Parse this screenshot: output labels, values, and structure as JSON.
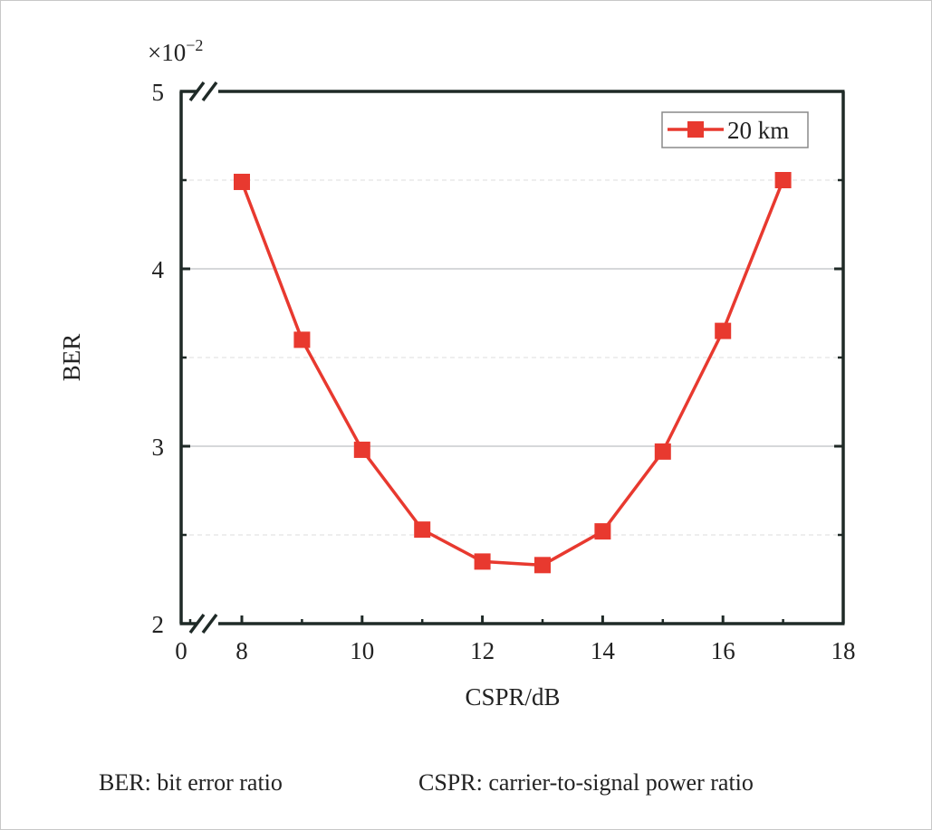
{
  "chart_data": {
    "type": "line",
    "title": "",
    "xlabel": "CSPR/dB",
    "ylabel": "BER",
    "y_multiplier": "×10",
    "y_multiplier_exp": "−2",
    "xlim": [
      0,
      18
    ],
    "ylim": [
      2,
      5
    ],
    "x_axis_break": [
      0,
      8
    ],
    "y_axis_break": [
      0,
      2
    ],
    "x_ticks": [
      0,
      8,
      10,
      12,
      14,
      16,
      18
    ],
    "x_tick_labels": [
      "0",
      "8",
      "10",
      "12",
      "14",
      "16",
      "18"
    ],
    "y_ticks": [
      2,
      3,
      4,
      5
    ],
    "y_tick_labels": [
      "2",
      "3",
      "4",
      "5"
    ],
    "grid": true,
    "legend_position": "top-right",
    "series": [
      {
        "name": "20 km",
        "color": "#e8392f",
        "marker": "square",
        "x": [
          8,
          9,
          10,
          11,
          12,
          13,
          14,
          15,
          16,
          17
        ],
        "y": [
          4.49,
          3.6,
          2.98,
          2.53,
          2.35,
          2.33,
          2.52,
          2.97,
          3.65,
          4.5
        ]
      }
    ]
  },
  "captions": {
    "ber": "BER: bit error ratio",
    "cspr": "CSPR: carrier-to-signal power ratio"
  }
}
